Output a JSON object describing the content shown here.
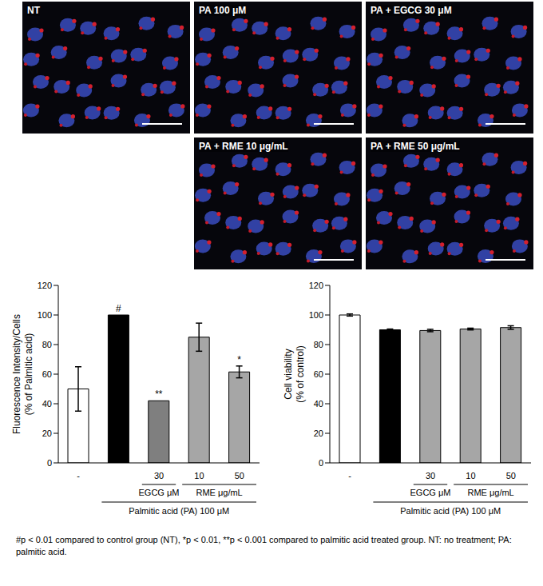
{
  "panels": [
    "NT",
    "PA 100 μM",
    "PA + EGCG 30 μM",
    "PA + RME 10 μg/mL",
    "PA + RME 50 μg/mL"
  ],
  "chart_data": [
    {
      "type": "bar",
      "y_label": [
        "Fluorescence Intensity/Cells",
        "(% of Palmitic acid)"
      ],
      "categories": [
        "-",
        null,
        "30",
        "10",
        "50"
      ],
      "groups": [
        {
          "label": "EGCG μM",
          "from": 2,
          "to": 2
        },
        {
          "label": "RME μg/mL",
          "from": 3,
          "to": 4
        }
      ],
      "treatment": {
        "label": "Palmitic acid (PA) 100 μM",
        "from": 1,
        "to": 4
      },
      "values": [
        50,
        100,
        42,
        85,
        61.5
      ],
      "errors": [
        15,
        0,
        0,
        9.5,
        4
      ],
      "significance": [
        null,
        "#",
        "**",
        null,
        "*"
      ],
      "colors": [
        "#ffffff",
        "#000000",
        "#7f7f7f",
        "#a6a6a6",
        "#a6a6a6"
      ],
      "ylim": [
        0,
        120
      ],
      "yticks": [
        0,
        20,
        40,
        60,
        80,
        100,
        120
      ]
    },
    {
      "type": "bar",
      "y_label": [
        "Cell viability",
        "(% of control)"
      ],
      "categories": [
        "-",
        null,
        "30",
        "10",
        "50"
      ],
      "groups": [
        {
          "label": "EGCG μM",
          "from": 2,
          "to": 2
        },
        {
          "label": "RME μg/mL",
          "from": 3,
          "to": 4
        }
      ],
      "treatment": {
        "label": "Palmitic acid (PA) 100 μM",
        "from": 1,
        "to": 4
      },
      "values": [
        100,
        90,
        89.5,
        90.5,
        91.5
      ],
      "errors": [
        0.7,
        0.5,
        0.8,
        0.6,
        1.2
      ],
      "colors": [
        "#ffffff",
        "#000000",
        "#a6a6a6",
        "#a6a6a6",
        "#a6a6a6"
      ],
      "ylim": [
        0,
        120
      ],
      "yticks": [
        0,
        20,
        40,
        60,
        80,
        100,
        120
      ]
    }
  ],
  "footnote": "#p < 0.01 compared to control group (NT), *p < 0.01, **p < 0.001 compared to palmitic acid treated group. NT: no treatment; PA: palmitic acid."
}
